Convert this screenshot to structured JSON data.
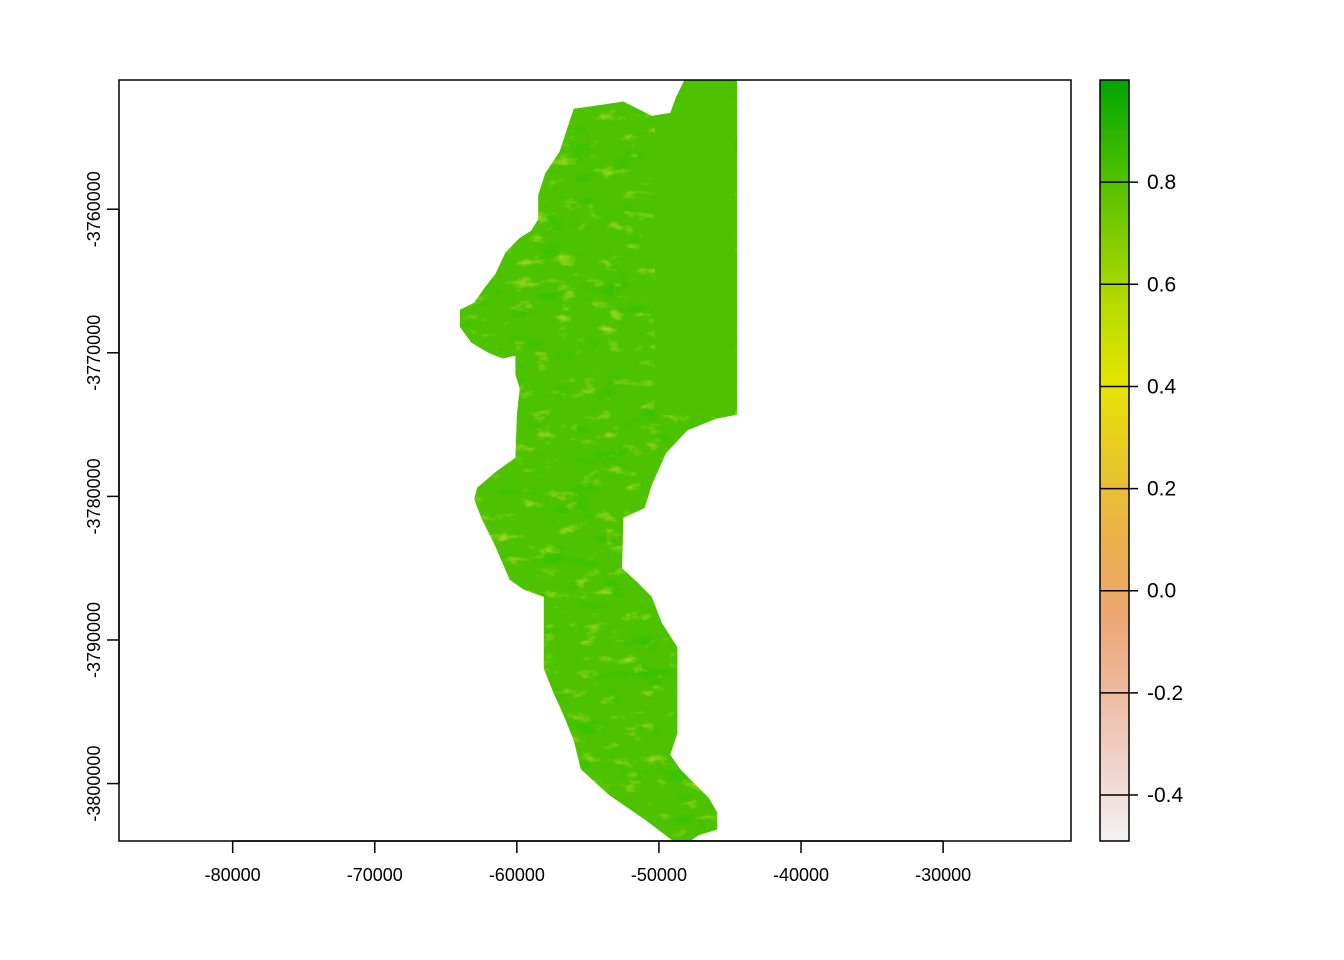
{
  "chart_data": {
    "type": "heatmap",
    "title": "",
    "xlabel": "",
    "ylabel": "",
    "xlim": [
      -88000,
      -21000
    ],
    "ylim": [
      -3804000,
      -3751000
    ],
    "x_ticks": [
      -80000,
      -70000,
      -60000,
      -50000,
      -40000,
      -30000
    ],
    "y_ticks": [
      -3760000,
      -3770000,
      -3780000,
      -3790000,
      -3800000
    ],
    "x_tick_labels": [
      "-80000",
      "-70000",
      "-60000",
      "-50000",
      "-40000",
      "-30000"
    ],
    "y_tick_labels": [
      "-3760000",
      "-3770000",
      "-3780000",
      "-3790000",
      "-3800000"
    ],
    "colorbar": {
      "range": [
        -0.49,
        1.0
      ],
      "ticks": [
        0.8,
        0.6,
        0.4,
        0.2,
        0.0,
        -0.2,
        -0.4
      ],
      "tick_labels": [
        "0.8",
        "0.6",
        "0.4",
        "0.2",
        "0.0",
        "-0.2",
        "-0.4"
      ],
      "palette": [
        "#00A600",
        "#3FBA00",
        "#7CCB00",
        "#B8DC00",
        "#E6E402",
        "#E8C72A",
        "#EBB14A",
        "#ECA670",
        "#EEB99F",
        "#F0D3CA",
        "#F2F2F2"
      ]
    },
    "raster": {
      "dominant_value": 0.68,
      "base_color": "#4DC300",
      "outline_coastline": [
        [
          -48200,
          -3751000
        ],
        [
          -44500,
          -3751000
        ],
        [
          -44500,
          -3774300
        ],
        [
          -46000,
          -3774600
        ],
        [
          -48000,
          -3775400
        ],
        [
          -49500,
          -3777000
        ],
        [
          -50500,
          -3779200
        ],
        [
          -51000,
          -3780800
        ],
        [
          -52500,
          -3781500
        ],
        [
          -52600,
          -3785000
        ],
        [
          -51500,
          -3786000
        ],
        [
          -50500,
          -3787000
        ],
        [
          -49800,
          -3788800
        ],
        [
          -48700,
          -3790500
        ],
        [
          -48700,
          -3796500
        ],
        [
          -49200,
          -3798000
        ],
        [
          -48500,
          -3799000
        ],
        [
          -47500,
          -3800000
        ],
        [
          -46500,
          -3801000
        ],
        [
          -45900,
          -3802000
        ],
        [
          -45900,
          -3803200
        ],
        [
          -47200,
          -3803600
        ],
        [
          -47800,
          -3804000
        ],
        [
          -49000,
          -3804000
        ],
        [
          -51000,
          -3802500
        ],
        [
          -53500,
          -3800800
        ],
        [
          -55500,
          -3799000
        ],
        [
          -56000,
          -3797000
        ],
        [
          -56600,
          -3795500
        ],
        [
          -57500,
          -3793500
        ],
        [
          -58100,
          -3792000
        ],
        [
          -58100,
          -3787000
        ],
        [
          -59500,
          -3786500
        ],
        [
          -60500,
          -3785800
        ],
        [
          -61500,
          -3783500
        ],
        [
          -62500,
          -3781500
        ],
        [
          -63000,
          -3780200
        ],
        [
          -62800,
          -3779400
        ],
        [
          -61500,
          -3778300
        ],
        [
          -60100,
          -3777300
        ],
        [
          -60000,
          -3774300
        ],
        [
          -59800,
          -3772500
        ],
        [
          -60100,
          -3771500
        ],
        [
          -60100,
          -3770200
        ],
        [
          -61000,
          -3770400
        ],
        [
          -62000,
          -3770000
        ],
        [
          -63200,
          -3769300
        ],
        [
          -64000,
          -3768200
        ],
        [
          -64000,
          -3767000
        ],
        [
          -63000,
          -3766500
        ],
        [
          -62300,
          -3765500
        ],
        [
          -61500,
          -3764500
        ],
        [
          -60800,
          -3763000
        ],
        [
          -59800,
          -3762000
        ],
        [
          -59000,
          -3761500
        ],
        [
          -58500,
          -3760700
        ],
        [
          -58500,
          -3759000
        ],
        [
          -58000,
          -3757500
        ],
        [
          -57000,
          -3756000
        ],
        [
          -56000,
          -3753000
        ],
        [
          -54500,
          -3752800
        ],
        [
          -52500,
          -3752500
        ],
        [
          -51500,
          -3753000
        ],
        [
          -50500,
          -3753500
        ],
        [
          -49200,
          -3753300
        ],
        [
          -48800,
          -3752200
        ]
      ]
    }
  }
}
